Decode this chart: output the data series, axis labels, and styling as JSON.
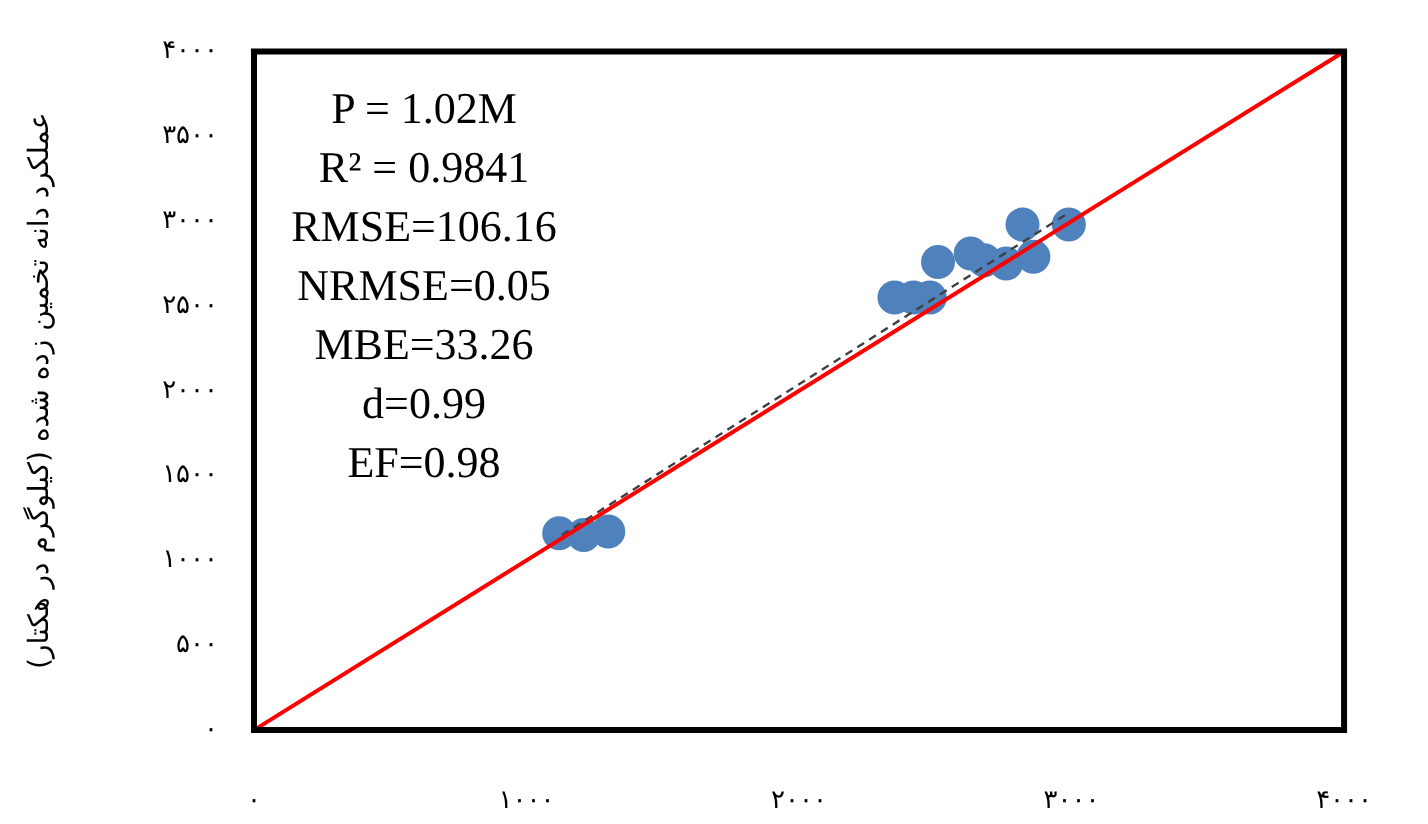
{
  "chart_data": {
    "type": "scatter",
    "ylabel": "عملکرد دانه تخمین زده شده (کیلوگرم در هکتار)",
    "xlim": [
      0,
      4000
    ],
    "ylim": [
      0,
      4000
    ],
    "xticks": [
      {
        "value": 0,
        "label": "۰"
      },
      {
        "value": 1000,
        "label": "۱۰۰۰"
      },
      {
        "value": 2000,
        "label": "۲۰۰۰"
      },
      {
        "value": 3000,
        "label": "۳۰۰۰"
      },
      {
        "value": 4000,
        "label": "۴۰۰۰"
      }
    ],
    "yticks": [
      {
        "value": 0,
        "label": "۰"
      },
      {
        "value": 500,
        "label": "۵۰۰"
      },
      {
        "value": 1000,
        "label": "۱۰۰۰"
      },
      {
        "value": 1500,
        "label": "۱۵۰۰"
      },
      {
        "value": 2000,
        "label": "۲۰۰۰"
      },
      {
        "value": 2500,
        "label": "۲۵۰۰"
      },
      {
        "value": 3000,
        "label": "۳۰۰۰"
      },
      {
        "value": 3500,
        "label": "۳۵۰۰"
      },
      {
        "value": 4000,
        "label": "۴۰۰۰"
      }
    ],
    "grid": false,
    "legend": false,
    "annotations": [
      "P = 1.02M",
      "R² = 0.9841",
      "RMSE=106.16",
      "NRMSE=0.05",
      "MBE=33.26",
      "d=0.99",
      "EF=0.98"
    ],
    "series": [
      {
        "type": "line",
        "color": "#ff0000",
        "line_style": "solid",
        "marker": "none",
        "x": [
          0,
          4000
        ],
        "values": [
          0,
          4000
        ]
      },
      {
        "type": "line",
        "color": "#404040",
        "line_style": "dashed",
        "marker": "none",
        "x": [
          1130,
          2990
        ],
        "values": [
          1150,
          3050
        ]
      },
      {
        "color": "#4f81bd",
        "marker": "circle",
        "x": [
          1120,
          1210,
          1300,
          2350,
          2420,
          2480,
          2510,
          2630,
          2680,
          2760,
          2860,
          2820,
          2950,
          2990
        ],
        "values": [
          1160,
          1150,
          1170,
          2550,
          2550,
          2550,
          2760,
          2810,
          2770,
          2750,
          2790,
          2980,
          null,
          2980
        ]
      }
    ]
  }
}
